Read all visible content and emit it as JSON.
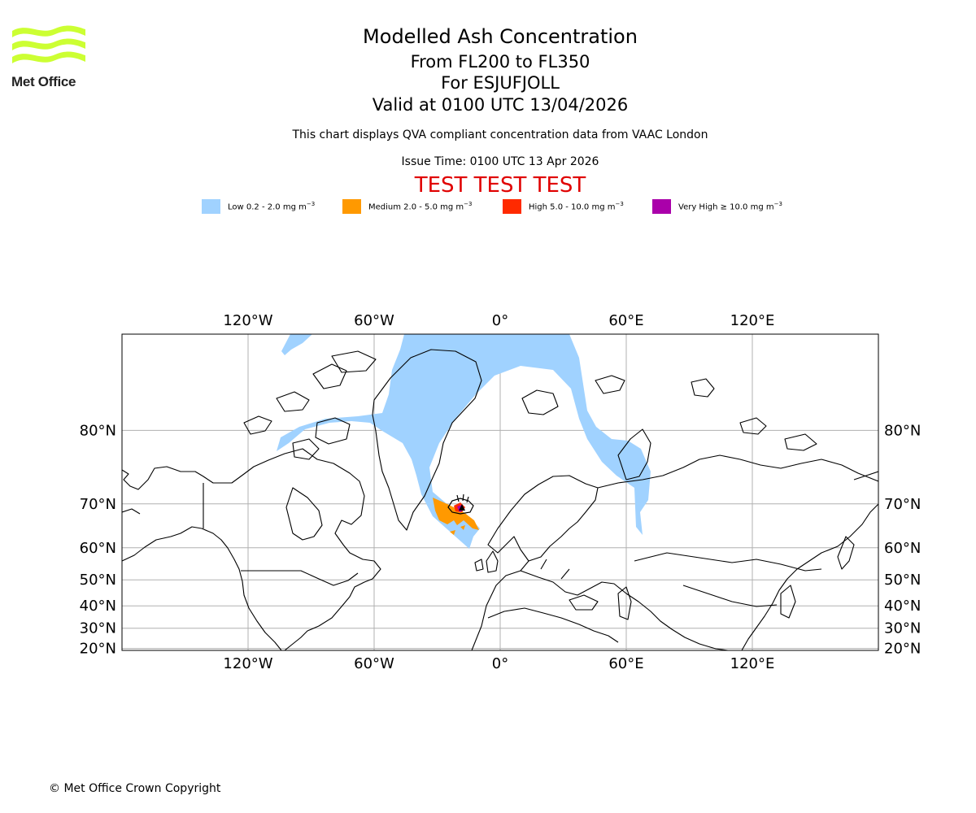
{
  "logo": {
    "text": "Met Office",
    "colors": {
      "waves": "#ccff33",
      "text": "#222222"
    }
  },
  "header": {
    "title": "Modelled Ash Concentration",
    "subtitle_levels": "From FL200 to FL350",
    "subtitle_volcano": "For ESJUFJOLL",
    "subtitle_valid": "Valid at 0100 UTC 13/04/2026",
    "description": "This chart displays QVA compliant concentration data from VAAC London",
    "issue_time": "Issue Time: 0100 UTC 13 Apr 2026",
    "test_banner": "TEST TEST TEST"
  },
  "legend": [
    {
      "label": "Low 0.2 - 2.0 mg m",
      "sup": "−3",
      "color": "#a0d2ff"
    },
    {
      "label": "Medium 2.0 - 5.0 mg m",
      "sup": "−3",
      "color": "#ff9900"
    },
    {
      "label": "High 5.0 - 10.0 mg m",
      "sup": "−3",
      "color": "#ff2a00"
    },
    {
      "label": "Very High  ≥  10.0 mg m",
      "sup": "−3",
      "color": "#aa00aa"
    }
  ],
  "map": {
    "projection": "Mercator",
    "lon_ticks": [
      "120°W",
      "60°W",
      "0°",
      "60°E",
      "120°E"
    ],
    "lat_ticks": [
      "80°N",
      "70°N",
      "60°N",
      "50°N",
      "40°N",
      "30°N",
      "20°N"
    ],
    "lon_values": [
      -120,
      -60,
      0,
      60,
      120
    ],
    "lat_values": [
      80,
      70,
      60,
      50,
      40,
      30,
      20
    ],
    "extent": {
      "lon": [
        -180,
        180
      ],
      "lat": [
        19,
        86
      ]
    },
    "grid": true,
    "colors": {
      "land_outline": "#000000",
      "grid": "#b0b0b0",
      "frame": "#000000"
    },
    "ash_layers": [
      "Low",
      "Medium",
      "High",
      "Very High"
    ],
    "volcano_marker": "triangle-icon"
  },
  "footer": {
    "copyright": "© Met Office Crown Copyright"
  }
}
